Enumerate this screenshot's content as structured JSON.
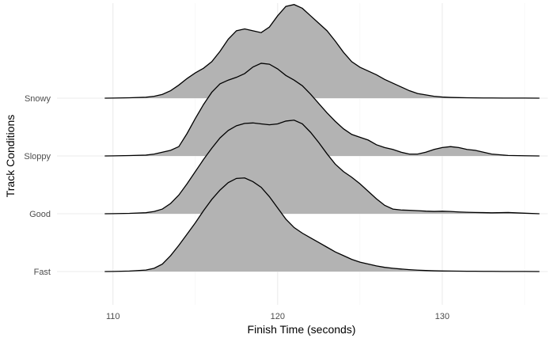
{
  "chart_data": {
    "type": "ridgeline",
    "xlabel": "Finish Time (seconds)",
    "ylabel": "Track Conditions",
    "xlim": [
      106.6,
      136.4
    ],
    "x_ticks": [
      110,
      120,
      130
    ],
    "x_minor_ticks": [
      115,
      125,
      135
    ],
    "grid": true,
    "fill_color": "#b3b3b3",
    "line_color": "#000000",
    "ridge_scale": 1.62,
    "x": [
      109.5,
      110,
      111,
      112,
      112.5,
      113,
      113.5,
      114,
      114.5,
      115,
      115.5,
      116,
      116.5,
      117,
      117.5,
      118,
      118.5,
      119,
      119.5,
      120,
      120.5,
      121,
      121.5,
      122,
      122.5,
      123,
      123.5,
      124,
      124.5,
      125,
      125.5,
      126,
      126.5,
      127,
      127.5,
      128,
      128.5,
      129,
      129.5,
      130,
      130.5,
      131,
      131.5,
      132,
      132.5,
      133,
      134,
      135,
      135.9
    ],
    "series": [
      {
        "name": "Fast",
        "values": [
          0,
          0.001,
          0.005,
          0.016,
          0.035,
          0.08,
          0.17,
          0.28,
          0.4,
          0.52,
          0.65,
          0.77,
          0.87,
          0.95,
          0.995,
          1.0,
          0.96,
          0.9,
          0.8,
          0.68,
          0.56,
          0.47,
          0.41,
          0.36,
          0.31,
          0.26,
          0.21,
          0.17,
          0.13,
          0.1,
          0.08,
          0.06,
          0.045,
          0.035,
          0.027,
          0.02,
          0.015,
          0.011,
          0.008,
          0.006,
          0.005,
          0.004,
          0.003,
          0.003,
          0.002,
          0.002,
          0.001,
          0.001,
          0
        ]
      },
      {
        "name": "Good",
        "values": [
          0,
          0.001,
          0.004,
          0.011,
          0.024,
          0.05,
          0.11,
          0.2,
          0.32,
          0.45,
          0.58,
          0.7,
          0.81,
          0.89,
          0.94,
          0.965,
          0.97,
          0.96,
          0.95,
          0.96,
          0.99,
          1.0,
          0.96,
          0.87,
          0.76,
          0.64,
          0.53,
          0.45,
          0.39,
          0.32,
          0.24,
          0.16,
          0.09,
          0.05,
          0.04,
          0.037,
          0.033,
          0.028,
          0.025,
          0.027,
          0.024,
          0.019,
          0.016,
          0.014,
          0.012,
          0.01,
          0.013,
          0.006,
          0
        ]
      },
      {
        "name": "Sloppy",
        "values": [
          0,
          0.001,
          0.004,
          0.009,
          0.02,
          0.04,
          0.06,
          0.1,
          0.24,
          0.4,
          0.55,
          0.68,
          0.77,
          0.81,
          0.84,
          0.88,
          0.95,
          0.99,
          0.98,
          0.93,
          0.86,
          0.81,
          0.75,
          0.66,
          0.56,
          0.46,
          0.37,
          0.29,
          0.23,
          0.2,
          0.17,
          0.12,
          0.09,
          0.07,
          0.04,
          0.02,
          0.02,
          0.04,
          0.07,
          0.09,
          0.1,
          0.09,
          0.07,
          0.06,
          0.04,
          0.02,
          0.005,
          0.002,
          0
        ]
      },
      {
        "name": "Snowy",
        "values": [
          0,
          0.001,
          0.004,
          0.01,
          0.02,
          0.04,
          0.08,
          0.14,
          0.21,
          0.27,
          0.32,
          0.39,
          0.5,
          0.63,
          0.72,
          0.74,
          0.72,
          0.7,
          0.76,
          0.88,
          0.98,
          1.0,
          0.96,
          0.88,
          0.8,
          0.72,
          0.61,
          0.49,
          0.39,
          0.33,
          0.29,
          0.25,
          0.2,
          0.16,
          0.12,
          0.08,
          0.05,
          0.035,
          0.02,
          0.012,
          0.008,
          0.006,
          0.004,
          0.003,
          0.002,
          0.002,
          0.001,
          0.001,
          0
        ]
      }
    ]
  }
}
